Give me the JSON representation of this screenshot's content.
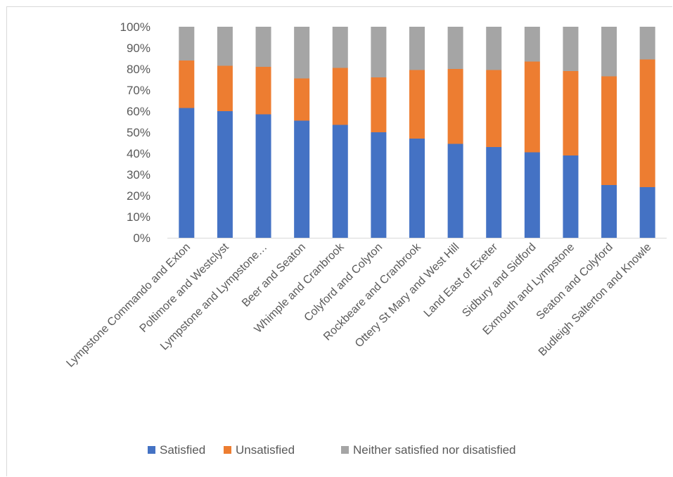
{
  "chart_data": {
    "type": "bar",
    "stacked": true,
    "percent": true,
    "title": "",
    "xlabel": "",
    "ylabel": "",
    "ylim": [
      0,
      1
    ],
    "yticks": [
      "0%",
      "10%",
      "20%",
      "30%",
      "40%",
      "50%",
      "60%",
      "70%",
      "80%",
      "90%",
      "100%"
    ],
    "grid": false,
    "legend": "bottom",
    "categories": [
      "Lympstone Commando and Exton",
      "Poltimore and Westclyst",
      "Lympstone and Lympstone…",
      "Beer and Seaton",
      "Whimple and Cranbrook",
      "Colyford and Colyton",
      "Rockbeare and Cranbrook",
      "Ottery St Mary and West Hill",
      "Land East of Exeter",
      "Sidbury and Sidford",
      "Exmouth and Lympstone",
      "Seaton and Colyford",
      "Budleigh Salterton and Knowle"
    ],
    "series": [
      {
        "name": "Satisfied",
        "color": "#4472c4",
        "values": [
          0.615,
          0.6,
          0.585,
          0.555,
          0.535,
          0.5,
          0.47,
          0.445,
          0.43,
          0.405,
          0.39,
          0.25,
          0.24
        ]
      },
      {
        "name": "Unsatisfied",
        "color": "#ed7d31",
        "values": [
          0.225,
          0.215,
          0.225,
          0.2,
          0.27,
          0.26,
          0.325,
          0.355,
          0.365,
          0.43,
          0.4,
          0.515,
          0.605
        ]
      },
      {
        "name": "Neither satisfied nor disatisfied",
        "color": "#a5a5a5",
        "values": [
          0.16,
          0.185,
          0.19,
          0.245,
          0.195,
          0.24,
          0.205,
          0.2,
          0.205,
          0.165,
          0.21,
          0.235,
          0.155
        ]
      }
    ]
  }
}
